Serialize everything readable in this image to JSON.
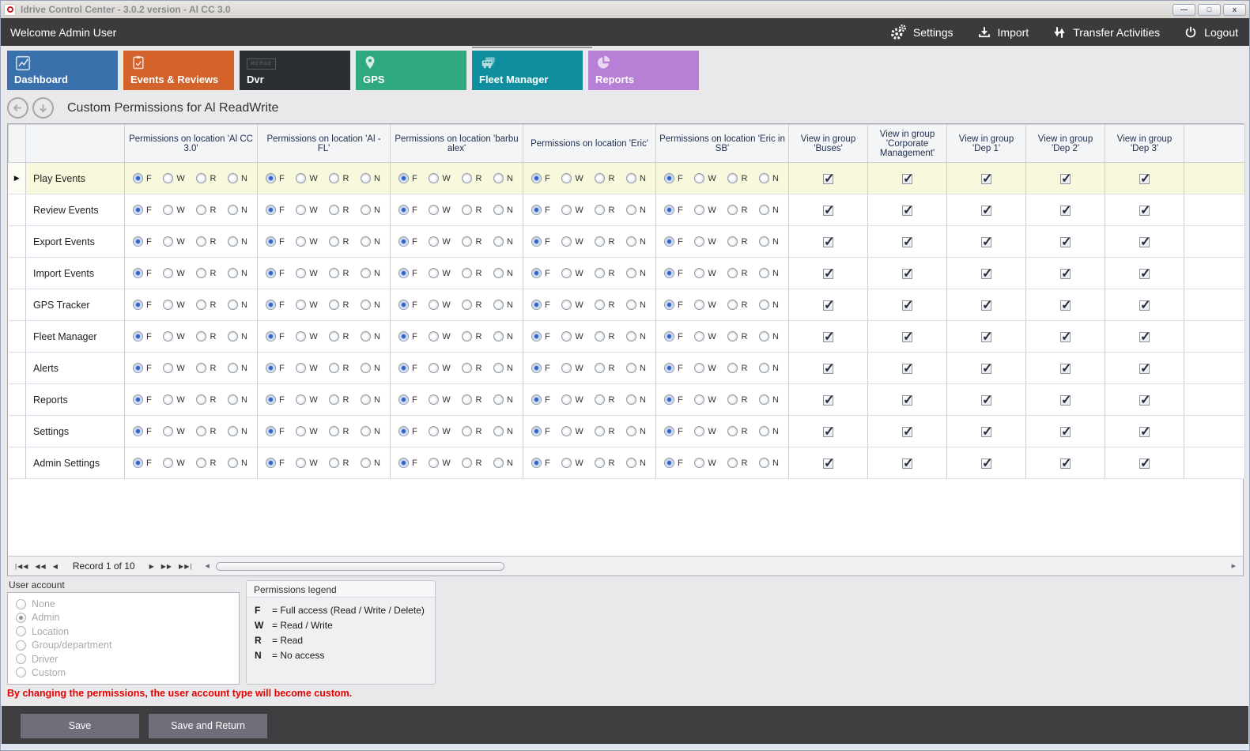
{
  "window": {
    "title": "Idrive Control Center - 3.0.2 version - Al CC 3.0",
    "controls": {
      "minimize": "—",
      "maximize": "□",
      "close": "x"
    }
  },
  "menubar": {
    "welcome": "Welcome Admin User",
    "items": [
      {
        "label": "Settings",
        "icon": "gears-icon"
      },
      {
        "label": "Import",
        "icon": "import-icon"
      },
      {
        "label": "Transfer Activities",
        "icon": "transfer-arrows-icon"
      },
      {
        "label": "Logout",
        "icon": "power-icon"
      }
    ]
  },
  "tabs": [
    {
      "label": "Dashboard",
      "color": "#3a71ad",
      "icon": "chart-icon",
      "selected": false
    },
    {
      "label": "Events & Reviews",
      "color": "#d3622b",
      "icon": "clipboard-check-icon",
      "selected": false
    },
    {
      "label": "Dvr",
      "color": "#2b2f33",
      "icon": "merge-logo-icon",
      "logo_text": "MERGE",
      "selected": false
    },
    {
      "label": "GPS",
      "color": "#2fa97e",
      "icon": "map-pin-icon",
      "selected": false
    },
    {
      "label": "Fleet Manager",
      "color": "#0f8f9e",
      "icon": "fleet-vehicles-icon",
      "selected": true
    },
    {
      "label": "Reports",
      "color": "#b77fd6",
      "icon": "pie-chart-icon",
      "selected": false
    }
  ],
  "page": {
    "title": "Custom Permissions for Al ReadWrite"
  },
  "grid": {
    "permission_columns": [
      "Permissions on location 'Al CC 3.0'",
      "Permissions on location 'Al - FL'",
      "Permissions on location 'barbu alex'",
      "Permissions on location 'Eric'",
      "Permissions on location 'Eric in SB'"
    ],
    "group_columns": [
      "View in group 'Buses'",
      "View in group 'Corporate Management'",
      "View in group 'Dep 1'",
      "View in group 'Dep 2'",
      "View in group 'Dep 3'"
    ],
    "radio_options": [
      "F",
      "W",
      "R",
      "N"
    ],
    "rows": [
      {
        "label": "Play Events",
        "active": true,
        "permissions": [
          "F",
          "F",
          "F",
          "F",
          "F"
        ],
        "groups": [
          true,
          true,
          true,
          true,
          true
        ]
      },
      {
        "label": "Review Events",
        "active": false,
        "permissions": [
          "F",
          "F",
          "F",
          "F",
          "F"
        ],
        "groups": [
          true,
          true,
          true,
          true,
          true
        ]
      },
      {
        "label": "Export Events",
        "active": false,
        "permissions": [
          "F",
          "F",
          "F",
          "F",
          "F"
        ],
        "groups": [
          true,
          true,
          true,
          true,
          true
        ]
      },
      {
        "label": "Import Events",
        "active": false,
        "permissions": [
          "F",
          "F",
          "F",
          "F",
          "F"
        ],
        "groups": [
          true,
          true,
          true,
          true,
          true
        ]
      },
      {
        "label": "GPS Tracker",
        "active": false,
        "permissions": [
          "F",
          "F",
          "F",
          "F",
          "F"
        ],
        "groups": [
          true,
          true,
          true,
          true,
          true
        ]
      },
      {
        "label": "Fleet Manager",
        "active": false,
        "permissions": [
          "F",
          "F",
          "F",
          "F",
          "F"
        ],
        "groups": [
          true,
          true,
          true,
          true,
          true
        ]
      },
      {
        "label": "Alerts",
        "active": false,
        "permissions": [
          "F",
          "F",
          "F",
          "F",
          "F"
        ],
        "groups": [
          true,
          true,
          true,
          true,
          true
        ]
      },
      {
        "label": "Reports",
        "active": false,
        "permissions": [
          "F",
          "F",
          "F",
          "F",
          "F"
        ],
        "groups": [
          true,
          true,
          true,
          true,
          true
        ]
      },
      {
        "label": "Settings",
        "active": false,
        "permissions": [
          "F",
          "F",
          "F",
          "F",
          "F"
        ],
        "groups": [
          true,
          true,
          true,
          true,
          true
        ]
      },
      {
        "label": "Admin Settings",
        "active": false,
        "permissions": [
          "F",
          "F",
          "F",
          "F",
          "F"
        ],
        "groups": [
          true,
          true,
          true,
          true,
          true
        ]
      }
    ]
  },
  "record_nav": {
    "text": "Record 1 of 10"
  },
  "user_account": {
    "label": "User account",
    "options": [
      {
        "label": "None",
        "selected": false
      },
      {
        "label": "Admin",
        "selected": true
      },
      {
        "label": "Location",
        "selected": false
      },
      {
        "label": "Group/department",
        "selected": false
      },
      {
        "label": "Driver",
        "selected": false
      },
      {
        "label": "Custom",
        "selected": false
      }
    ]
  },
  "legend": {
    "title": "Permissions legend",
    "entries": [
      {
        "key": "F",
        "desc": "= Full access (Read / Write / Delete)"
      },
      {
        "key": "W",
        "desc": "= Read / Write"
      },
      {
        "key": "R",
        "desc": "= Read"
      },
      {
        "key": "N",
        "desc": "= No access"
      }
    ]
  },
  "warning": "By changing the permissions, the user account type will become custom.",
  "footer": {
    "save": "Save",
    "save_return": "Save and Return"
  }
}
